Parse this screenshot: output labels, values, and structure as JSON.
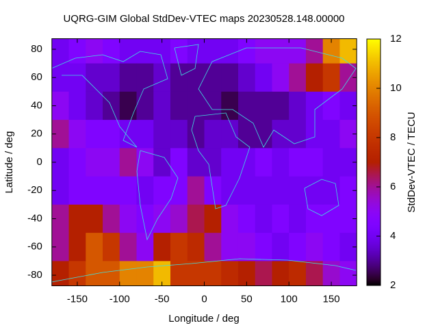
{
  "chart_data": {
    "type": "heatmap",
    "title": "UQRG-GIM Global StdDev-VTEC maps 20230528.148.00000",
    "x_label": "Longitude / deg",
    "y_label": "Latitude / deg",
    "colorbar_label": "StdDev-VTEC / TECU",
    "x": [
      -170,
      -150,
      -130,
      -110,
      -90,
      -70,
      -50,
      -30,
      -10,
      10,
      30,
      50,
      70,
      90,
      110,
      130,
      150,
      170
    ],
    "y": [
      80,
      60,
      40,
      20,
      0,
      -20,
      -40,
      -60,
      -80
    ],
    "z": [
      [
        4,
        4.5,
        5,
        4.5,
        4,
        4,
        4,
        4.5,
        4,
        4,
        4,
        4.5,
        5,
        5,
        5,
        6,
        10,
        11
      ],
      [
        4,
        4,
        3.5,
        3.5,
        3,
        3,
        3.5,
        3,
        3,
        3,
        3,
        3.5,
        4,
        5,
        6,
        7,
        8,
        6
      ],
      [
        5,
        4,
        3.5,
        3,
        2.5,
        3,
        3.5,
        3,
        3,
        3,
        2.5,
        3,
        3,
        3,
        3.5,
        4,
        4.5,
        4
      ],
      [
        6,
        5,
        4.5,
        4.5,
        4,
        4,
        3.5,
        3.5,
        3,
        3.5,
        3.5,
        3,
        3,
        3.5,
        3.5,
        4,
        4,
        5
      ],
      [
        4,
        4.5,
        5,
        5,
        6,
        5,
        3.5,
        4.5,
        3.5,
        3.5,
        4,
        4,
        4.5,
        4,
        4.5,
        4.5,
        4,
        4
      ],
      [
        4,
        4.5,
        4.5,
        4.5,
        4.5,
        4,
        4.5,
        4.5,
        6,
        4.5,
        4,
        4,
        4,
        4,
        4,
        4,
        4,
        4.5
      ],
      [
        6,
        7,
        7,
        6,
        5,
        4.5,
        5,
        5.5,
        6.5,
        7,
        5,
        4.5,
        4,
        4.5,
        4,
        4.5,
        4.5,
        4.5
      ],
      [
        6,
        7,
        9,
        8,
        6,
        5,
        7,
        8,
        7.5,
        6,
        5,
        5,
        4.5,
        4,
        4.5,
        5,
        4.5,
        4
      ],
      [
        7,
        8,
        9,
        9,
        10,
        10,
        11,
        8,
        8,
        8,
        7.5,
        7,
        6.5,
        7,
        7.5,
        6.5,
        5.5,
        5
      ]
    ],
    "xlim": [
      -180,
      180
    ],
    "ylim": [
      -87.5,
      87.5
    ],
    "xticks": [
      -150,
      -100,
      -50,
      0,
      50,
      100,
      150
    ],
    "yticks": [
      -80,
      -60,
      -40,
      -20,
      0,
      20,
      40,
      60,
      80
    ],
    "clim": [
      2,
      12
    ],
    "cticks": [
      2,
      4,
      6,
      8,
      10,
      12
    ],
    "palette": "gnuplot"
  }
}
